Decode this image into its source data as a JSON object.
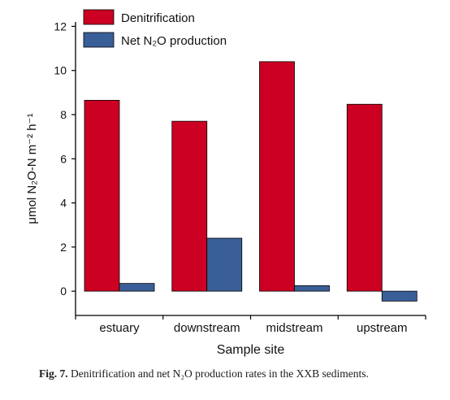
{
  "chart_data": {
    "type": "bar",
    "categories": [
      "estuary",
      "downstream",
      "midstream",
      "upstream"
    ],
    "series": [
      {
        "name": "Denitrification",
        "values": [
          8.65,
          7.7,
          10.4,
          8.47
        ],
        "color": "#cc0022"
      },
      {
        "name": "Net N₂O production",
        "values": [
          0.35,
          2.4,
          0.25,
          -0.45
        ],
        "color": "#3a5f98"
      }
    ],
    "xlabel": "Sample site",
    "ylabel": "μmol N₂O-N m⁻² h⁻¹",
    "ylim": [
      -1.1,
      12.2
    ],
    "yticks": [
      0,
      2,
      4,
      6,
      8,
      10,
      12
    ],
    "legend": "top-left",
    "grid": false
  },
  "caption": {
    "label": "Fig. 7.",
    "text": "Denitrification and net N₂O production rates in the XXB sediments."
  }
}
